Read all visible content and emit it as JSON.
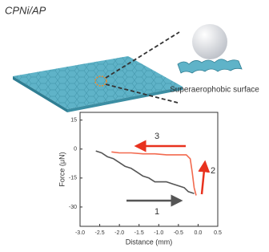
{
  "figure": {
    "label": "CPNi/AP",
    "caption": "Superaerophobic surface"
  },
  "chart_data": {
    "type": "line",
    "xlabel": "Distance (mm)",
    "ylabel": "Force (μN)",
    "xlim": [
      -3,
      0.5
    ],
    "ylim": [
      -40,
      19
    ],
    "xticks": [
      {
        "value": -3,
        "label": "-3.0"
      },
      -2.5,
      {
        "value": -2,
        "label": "-2.0"
      },
      -1.5,
      {
        "value": -1,
        "label": "-1.0"
      },
      -0.5,
      {
        "value": 0,
        "label": "0.0"
      },
      0.5
    ],
    "yticks": [
      15,
      0,
      -15,
      -30
    ],
    "series": [
      {
        "color": "#555555",
        "x": [
          -2.6,
          -2.45,
          -2.3,
          -2.15,
          -2.0,
          -1.85,
          -1.7,
          -1.55,
          -1.4,
          -1.25,
          -1.1,
          -0.95,
          -0.8,
          -0.65,
          -0.5,
          -0.35,
          -0.25,
          -0.1
        ],
        "values": [
          -1,
          -2,
          -4,
          -5,
          -7,
          -9,
          -10,
          -12,
          -14,
          -15,
          -17,
          -17,
          -17,
          -18,
          -19,
          -20,
          -22,
          -23
        ]
      },
      {
        "color": "#f26a4f",
        "x": [
          -0.05,
          -0.1,
          -0.15,
          -0.2,
          -0.3,
          -0.5,
          -0.8,
          -1.1,
          -1.4,
          -1.7,
          -2.0,
          -2.2
        ],
        "values": [
          -24,
          -20,
          -12,
          -5,
          -3,
          -3,
          -3,
          -2.5,
          -2.5,
          -2,
          -2,
          -1.5
        ]
      }
    ],
    "annotations": [
      "1",
      "2",
      "3"
    ]
  }
}
